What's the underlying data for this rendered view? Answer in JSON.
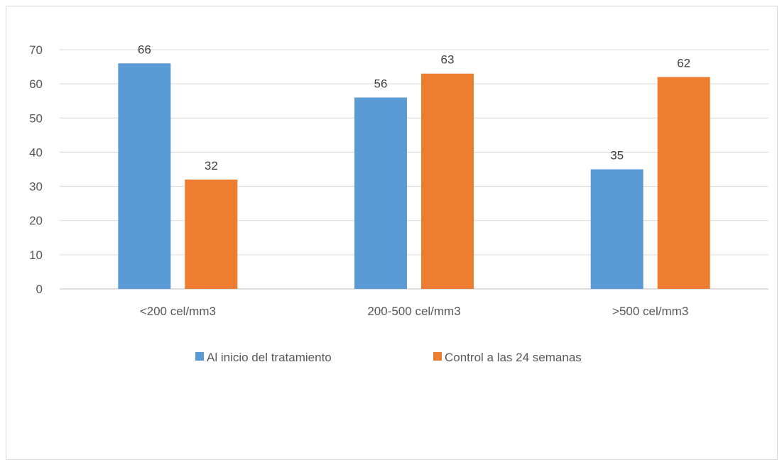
{
  "chart_data": {
    "type": "bar",
    "title": "",
    "xlabel": "",
    "ylabel": "",
    "categories": [
      "<200 cel/mm3",
      "200-500 cel/mm3",
      ">500 cel/mm3"
    ],
    "series": [
      {
        "name": "Al inicio del tratamiento",
        "values": [
          66,
          56,
          35
        ],
        "color": "#5b9bd5"
      },
      {
        "name": "Control a las 24 semanas",
        "values": [
          32,
          63,
          62
        ],
        "color": "#ed7d31"
      }
    ],
    "ylim": [
      0,
      70
    ],
    "yticks": [
      0,
      10,
      20,
      30,
      40,
      50,
      60,
      70
    ],
    "grid": true,
    "legend_position": "bottom",
    "data_labels": true,
    "gridline_color": "#d9d9d9",
    "axis_color": "#bfbfbf"
  }
}
